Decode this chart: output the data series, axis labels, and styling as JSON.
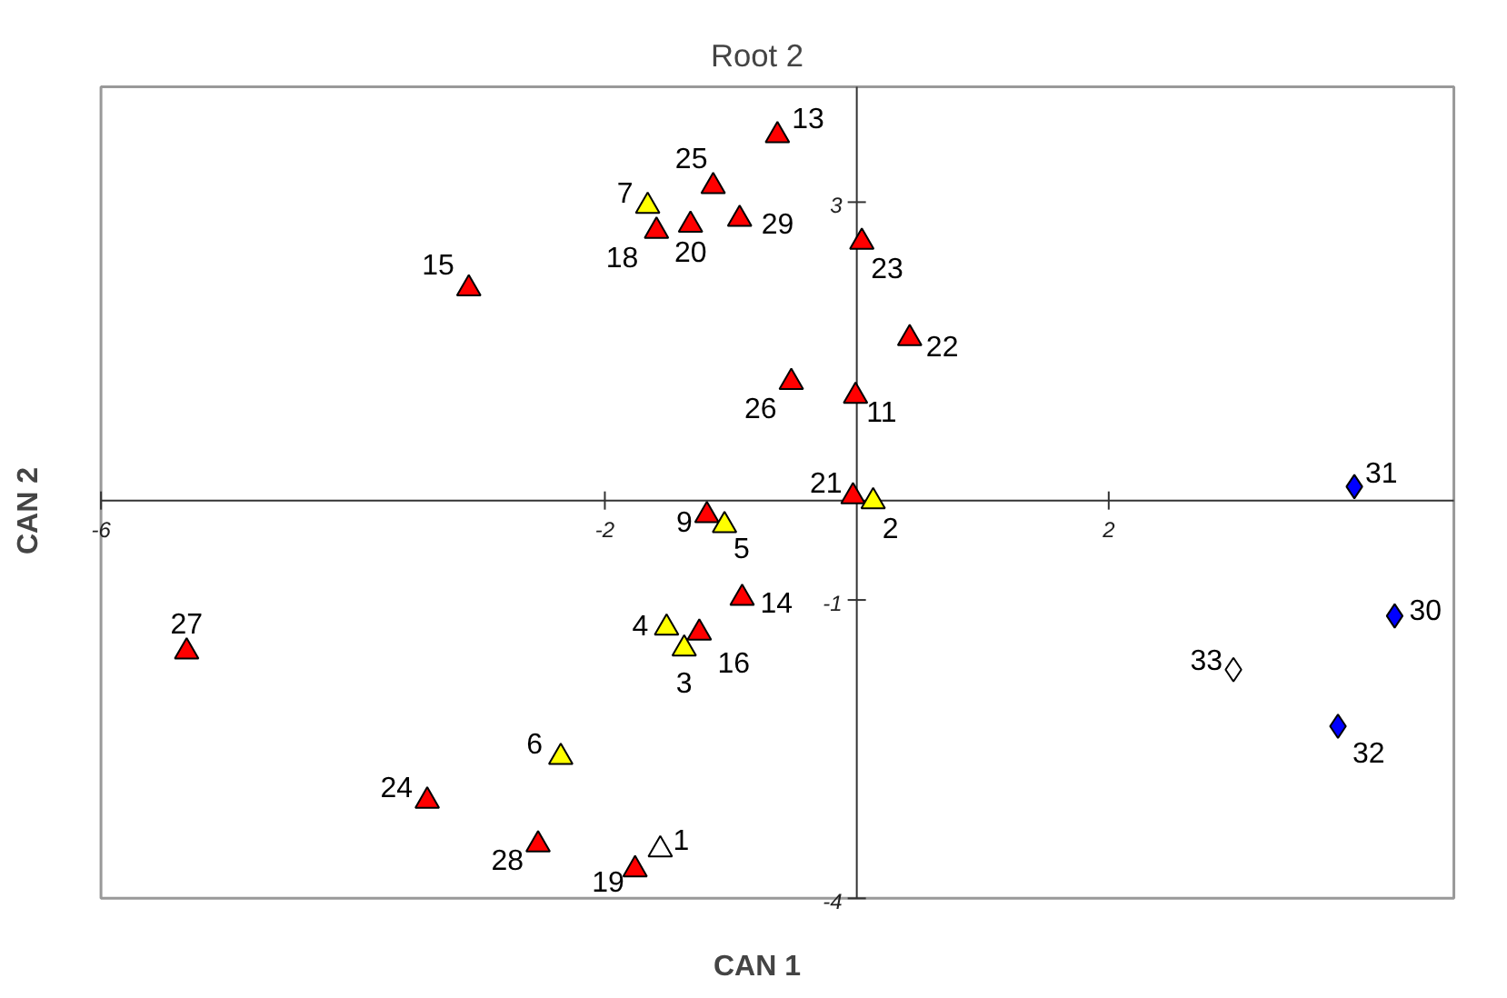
{
  "chart_data": {
    "type": "scatter",
    "title": "Root 2",
    "xlabel": "CAN 1",
    "ylabel": "CAN 2",
    "xlim": [
      -6,
      4.74
    ],
    "ylim": [
      -4,
      4.16
    ],
    "xticks": [
      -6,
      -2,
      2
    ],
    "yticks": [
      3,
      -1,
      -4
    ],
    "grid": false,
    "series": [
      {
        "color": "#ff0000",
        "marker": "triangle",
        "x": [
          -0.63,
          -1.14,
          -1.59,
          -1.32,
          -0.93,
          0.04,
          -3.08,
          0.42,
          -0.52,
          -0.01,
          -0.03,
          -1.19,
          -0.91,
          -1.25,
          -5.32,
          -3.41,
          -2.53,
          -1.76
        ],
        "values": [
          3.67,
          3.16,
          2.71,
          2.77,
          2.83,
          2.6,
          2.13,
          1.63,
          1.19,
          1.05,
          0.04,
          -0.15,
          -0.98,
          -1.33,
          -1.52,
          -3.02,
          -3.46,
          -3.71
        ]
      },
      {
        "color": "#ffff00",
        "marker": "triangle",
        "x": [
          -1.66,
          0.13,
          -1.05,
          -1.51,
          -1.37,
          -2.35
        ],
        "values": [
          2.96,
          -0.01,
          -0.25,
          -1.28,
          -1.49,
          -2.58
        ]
      },
      {
        "color": "#ffffff",
        "marker": "triangle",
        "x": [
          -1.56
        ],
        "values": [
          -3.51
        ]
      },
      {
        "color": "#0000ff",
        "marker": "diamond",
        "x": [
          3.95,
          4.27,
          3.82
        ],
        "values": [
          0.14,
          -1.16,
          -2.27
        ]
      },
      {
        "color": "#ffffff",
        "marker": "diamond",
        "x": [
          2.99
        ],
        "values": [
          -1.7
        ]
      }
    ],
    "annotations": [
      {
        "text": "13",
        "x": -0.63,
        "y": 3.67
      },
      {
        "text": "25",
        "x": -1.14,
        "y": 3.16
      },
      {
        "text": "18",
        "x": -1.59,
        "y": 2.71
      },
      {
        "text": "20",
        "x": -1.32,
        "y": 2.77
      },
      {
        "text": "29",
        "x": -0.93,
        "y": 2.83
      },
      {
        "text": "23",
        "x": 0.04,
        "y": 2.6
      },
      {
        "text": "15",
        "x": -3.08,
        "y": 2.13
      },
      {
        "text": "22",
        "x": 0.42,
        "y": 1.63
      },
      {
        "text": "26",
        "x": -0.52,
        "y": 1.19
      },
      {
        "text": "11",
        "x": -0.01,
        "y": 1.05
      },
      {
        "text": "21",
        "x": -0.03,
        "y": 0.04
      },
      {
        "text": "9",
        "x": -1.19,
        "y": -0.15
      },
      {
        "text": "14",
        "x": -0.91,
        "y": -0.98
      },
      {
        "text": "16",
        "x": -1.25,
        "y": -1.33
      },
      {
        "text": "27",
        "x": -5.32,
        "y": -1.52
      },
      {
        "text": "24",
        "x": -3.41,
        "y": -3.02
      },
      {
        "text": "28",
        "x": -2.53,
        "y": -3.46
      },
      {
        "text": "19",
        "x": -1.76,
        "y": -3.71
      },
      {
        "text": "7",
        "x": -1.66,
        "y": 2.96
      },
      {
        "text": "2",
        "x": 0.13,
        "y": -0.01
      },
      {
        "text": "5",
        "x": -1.05,
        "y": -0.25
      },
      {
        "text": "4",
        "x": -1.51,
        "y": -1.28
      },
      {
        "text": "3",
        "x": -1.37,
        "y": -1.49
      },
      {
        "text": "6",
        "x": -2.35,
        "y": -2.58
      },
      {
        "text": "1",
        "x": -1.56,
        "y": -3.51
      },
      {
        "text": "31",
        "x": 3.95,
        "y": 0.14
      },
      {
        "text": "30",
        "x": 4.27,
        "y": -1.16
      },
      {
        "text": "32",
        "x": 3.82,
        "y": -2.27
      },
      {
        "text": "33",
        "x": 2.99,
        "y": -1.7
      }
    ]
  }
}
